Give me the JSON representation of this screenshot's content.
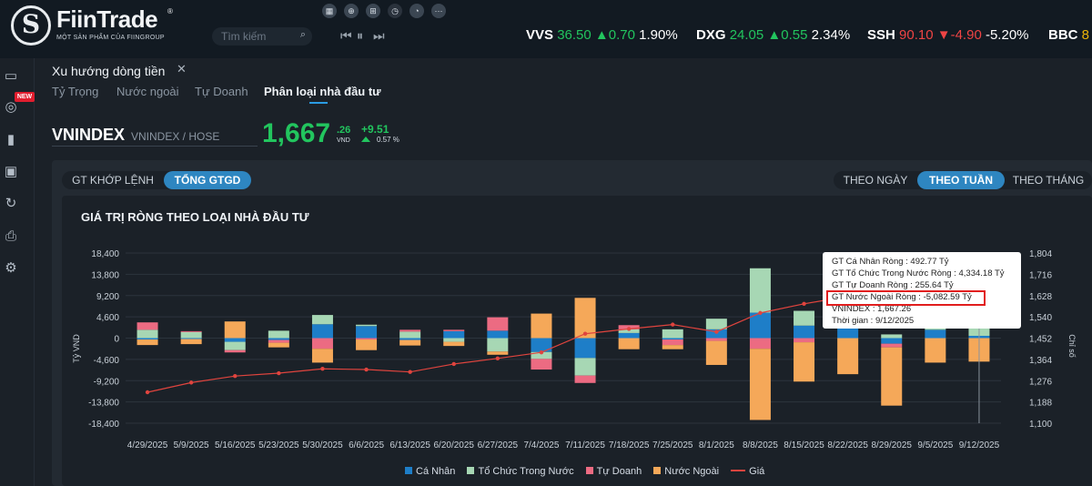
{
  "app": {
    "logo_letter": "S",
    "logo_name": "FiinTrade",
    "logo_reg": "®",
    "logo_sub": "MỘT SẢN PHẨM CỦA FIINGROUP"
  },
  "toolbar_icons": [
    "grid-icon",
    "zoom-icon",
    "gift-icon",
    "clock-icon",
    "clock-icon",
    "more-icon"
  ],
  "search": {
    "placeholder": "Tìm kiếm"
  },
  "ticker": [
    {
      "sym": "VVS",
      "price": "36.50",
      "change": "0.70",
      "pct": "1.90%",
      "dir": "up"
    },
    {
      "sym": "DXG",
      "price": "24.05",
      "change": "0.55",
      "pct": "2.34%",
      "dir": "up"
    },
    {
      "sym": "SSH",
      "price": "90.10",
      "change": "-4.90",
      "pct": "-5.20%",
      "dir": "down"
    },
    {
      "sym": "BBC",
      "price": "8"
    }
  ],
  "sidebar": {
    "new_badge": "NEW"
  },
  "panel": {
    "title": "Xu hướng dòng tiền",
    "close": "✕",
    "subtabs": [
      "Tỷ Trọng",
      "Nước ngoài",
      "Tự Doanh",
      "Phân loại nhà đầu tư"
    ],
    "active_subtab": "Phân loại nhà đầu tư"
  },
  "index": {
    "name": "VNINDEX",
    "exchange": "VNINDEX / HOSE",
    "value": "1,667",
    "decimal": ".26",
    "unit": "VND",
    "change": "+9.51",
    "pct": "0.57 %"
  },
  "value_toggle": {
    "left": "GT KHỚP LỆNH",
    "right": "TỔNG GTGD",
    "active": "TỔNG GTGD"
  },
  "period_toggle": {
    "day": "THEO NGÀY",
    "week": "THEO TUẦN",
    "month": "THEO THÁNG",
    "active": "THEO TUẦN"
  },
  "colors": {
    "ca_nhan": "#1e7ec8",
    "to_chuc": "#a7d7b4",
    "tu_doanh": "#ec6b82",
    "nuoc_ngoai": "#f5a859",
    "gia": "#e0443e"
  },
  "tooltip": {
    "l1": "GT Cá Nhân Ròng  : 492.77 Tỷ",
    "l2": "GT Tổ Chức Trong Nước Ròng : 4,334.18 Tỷ",
    "l3": "GT Tự Doanh Ròng : 255.64 Tỷ",
    "l4": "GT Nước Ngoài Ròng : -5,082.59 Tỷ",
    "l5": "VNINDEX : 1,667.26",
    "l6": "Thời gian : 9/12/2025"
  },
  "chart_data": {
    "type": "bar",
    "title": "GIÁ TRỊ RÒNG THEO LOẠI NHÀ ĐẦU TƯ",
    "ylabel": "Tỷ VND",
    "y2label": "Chỉ số",
    "ylim": [
      -18400,
      18400
    ],
    "y2lim": [
      1100,
      1804
    ],
    "yticks": [
      "18,400",
      "13,800",
      "9,200",
      "4,600",
      "0",
      "-4,600",
      "-9,200",
      "-13,800",
      "-18,400"
    ],
    "y2ticks": [
      "1,804",
      "1,716",
      "1,628",
      "1,540",
      "1,452",
      "1,364",
      "1,276",
      "1,188",
      "1,100"
    ],
    "categories": [
      "4/29/2025",
      "5/9/2025",
      "5/16/2025",
      "5/23/2025",
      "5/30/2025",
      "6/6/2025",
      "6/13/2025",
      "6/20/2025",
      "6/27/2025",
      "7/4/2025",
      "7/11/2025",
      "7/18/2025",
      "7/25/2025",
      "8/1/2025",
      "8/8/2025",
      "8/15/2025",
      "8/22/2025",
      "8/29/2025",
      "9/5/2025",
      "9/12/2025"
    ],
    "series": [
      {
        "name": "Cá Nhân",
        "values": [
          -300,
          -200,
          -800,
          -400,
          3000,
          2600,
          -400,
          1500,
          1600,
          -3000,
          -4300,
          1100,
          -300,
          1900,
          5500,
          2700,
          2400,
          -1200,
          1800,
          493
        ]
      },
      {
        "name": "Tổ Chức Trong Nước",
        "values": [
          1800,
          1300,
          -1800,
          1600,
          2000,
          300,
          1400,
          -800,
          -2900,
          -1500,
          -3800,
          800,
          1900,
          2300,
          9600,
          3200,
          1500,
          800,
          900,
          4334
        ]
      },
      {
        "name": "Tự Doanh",
        "values": [
          1600,
          200,
          -500,
          -600,
          -2300,
          -300,
          400,
          300,
          2900,
          -2300,
          -1600,
          900,
          -1200,
          -600,
          -2300,
          -900,
          2000,
          -800,
          800,
          256
        ]
      },
      {
        "name": "Nước Ngoài",
        "values": [
          -1200,
          -1100,
          3600,
          -1000,
          -3000,
          -2300,
          -1200,
          -900,
          -700,
          5300,
          8700,
          -2400,
          -900,
          -5200,
          -15400,
          -8500,
          -7800,
          -12600,
          -5300,
          -5083
        ]
      }
    ],
    "line": {
      "name": "Giá",
      "values": [
        1228,
        1268,
        1295,
        1307,
        1325,
        1322,
        1312,
        1345,
        1368,
        1393,
        1470,
        1490,
        1508,
        1478,
        1556,
        1594,
        1624,
        1680,
        1684,
        1667
      ]
    }
  }
}
